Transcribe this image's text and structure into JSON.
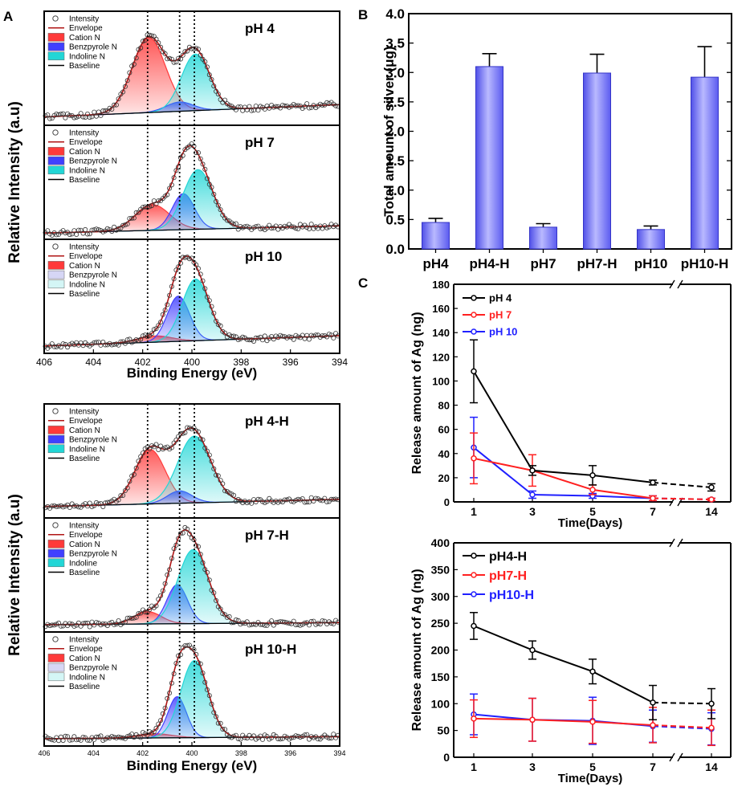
{
  "colors": {
    "cation": "#ff3a3a",
    "benz": "#4040ff",
    "indo": "#22d6d6",
    "env": "#b01515",
    "baseline": "#000000",
    "bar": "#7b7bff",
    "s_black": "#000000",
    "s_red": "#ff2020",
    "s_blue": "#2020ff"
  },
  "panel_labels": {
    "a": "A",
    "b": "B",
    "c": "C"
  },
  "chart_data": [
    {
      "id": "xps_top",
      "type": "line",
      "xlabel": "Binding Energy (eV)",
      "ylabel": "Relative Intensity (a.u)",
      "xlim": [
        406,
        394
      ],
      "xticks": [
        "406",
        "404",
        "402",
        "400",
        "398",
        "396",
        "394"
      ],
      "ref_lines": [
        401.8,
        400.5,
        399.9
      ],
      "subplots": [
        {
          "title": "pH 4",
          "legend": [
            "Intensity",
            "Envelope",
            "Cation N",
            "Benzpyrole N",
            "Indoline N",
            "Baseline"
          ],
          "legend_fills": [
            "none",
            "none",
            "cation",
            "benz",
            "indo",
            "none"
          ],
          "baseline": [
            0.05,
            0.17
          ],
          "peaks": [
            {
              "name": "Cation N",
              "center": 401.75,
              "height": 0.73,
              "width": 0.68
            },
            {
              "name": "Benzpyrole N",
              "center": 400.5,
              "height": 0.09,
              "width": 0.55
            },
            {
              "name": "Indoline N",
              "center": 399.85,
              "height": 0.55,
              "width": 0.58
            }
          ]
        },
        {
          "title": "pH 7",
          "legend": [
            "Intensity",
            "Envelope",
            "Cation N",
            "Benzpyrole N",
            "Indoline N",
            "Baseline"
          ],
          "legend_fills": [
            "none",
            "none",
            "cation",
            "benz",
            "indo",
            "none"
          ],
          "baseline": [
            0.03,
            0.1
          ],
          "peaks": [
            {
              "name": "Cation N",
              "center": 401.6,
              "height": 0.25,
              "width": 0.7
            },
            {
              "name": "Benzpyrole N",
              "center": 400.35,
              "height": 0.35,
              "width": 0.45
            },
            {
              "name": "Indoline N",
              "center": 399.75,
              "height": 0.58,
              "width": 0.6
            }
          ]
        },
        {
          "title": "pH 10",
          "legend": [
            "Intensity",
            "Envelope",
            "Cation N",
            "Benzpyrole N",
            "Indoline N",
            "Baseline"
          ],
          "legend_fills": [
            "none",
            "none",
            "cation",
            "benzlight",
            "indolight",
            "none"
          ],
          "baseline": [
            0.04,
            0.14
          ],
          "peaks": [
            {
              "name": "Cation N",
              "center": 401.5,
              "height": 0.06,
              "width": 0.7
            },
            {
              "name": "Benzpyrole N",
              "center": 400.55,
              "height": 0.44,
              "width": 0.45
            },
            {
              "name": "Indoline N",
              "center": 399.85,
              "height": 0.6,
              "width": 0.55
            }
          ]
        }
      ]
    },
    {
      "id": "xps_bottom",
      "type": "line",
      "xlabel": "Binding Energy (eV)",
      "ylabel": "Relative Intensity (a.u)",
      "xlim": [
        406,
        394
      ],
      "xticks": [
        "406",
        "404",
        "402",
        "400",
        "398",
        "396",
        "394"
      ],
      "ref_lines": [
        401.8,
        400.5,
        399.9
      ],
      "subplots": [
        {
          "title": "pH 4-H",
          "legend": [
            "Intensity",
            "Envelope",
            "Cation N",
            "Benzpyrole N",
            "Indoline N",
            "Baseline"
          ],
          "legend_fills": [
            "none",
            "none",
            "cation",
            "benz",
            "indo",
            "none"
          ],
          "baseline": [
            0.08,
            0.15
          ],
          "peaks": [
            {
              "name": "Cation N",
              "center": 401.7,
              "height": 0.53,
              "width": 0.62
            },
            {
              "name": "Benzpyrole N",
              "center": 400.5,
              "height": 0.12,
              "width": 0.5
            },
            {
              "name": "Indoline N",
              "center": 399.9,
              "height": 0.65,
              "width": 0.68
            }
          ]
        },
        {
          "title": "pH 7-H",
          "legend": [
            "Intensity",
            "Envelope",
            "Cation N",
            "Benzpyrole N",
            "Indoline",
            "Baseline"
          ],
          "legend_fills": [
            "none",
            "none",
            "cation",
            "benz",
            "indo",
            "none"
          ],
          "baseline": [
            0.04,
            0.06
          ],
          "peaks": [
            {
              "name": "Cation N",
              "center": 401.8,
              "height": 0.12,
              "width": 0.55
            },
            {
              "name": "Benzpyrole N",
              "center": 400.6,
              "height": 0.38,
              "width": 0.42
            },
            {
              "name": "Indoline N",
              "center": 399.95,
              "height": 0.72,
              "width": 0.62
            }
          ]
        },
        {
          "title": "pH 10-H",
          "legend": [
            "Intensity",
            "Envelope",
            "Cation N",
            "Benzpyrole N",
            "Indoline N",
            "Baseline"
          ],
          "legend_fills": [
            "none",
            "none",
            "cation",
            "benzlight",
            "indolight",
            "none"
          ],
          "baseline": [
            0.04,
            0.06
          ],
          "peaks": [
            {
              "name": "Cation N",
              "center": 401.5,
              "height": 0.04,
              "width": 0.7
            },
            {
              "name": "Benzpyrole N",
              "center": 400.6,
              "height": 0.4,
              "width": 0.38
            },
            {
              "name": "Indoline N",
              "center": 399.9,
              "height": 0.75,
              "width": 0.55
            }
          ]
        }
      ]
    },
    {
      "id": "bar",
      "type": "bar",
      "ylabel": "Total amount of silver (μg)",
      "categories": [
        "pH4",
        "pH4-H",
        "pH7",
        "pH7-H",
        "pH10",
        "pH10-H"
      ],
      "values": [
        0.45,
        3.1,
        0.37,
        2.99,
        0.33,
        2.92
      ],
      "errors": [
        0.07,
        0.22,
        0.06,
        0.32,
        0.06,
        0.52
      ],
      "ylim": [
        0,
        4.0
      ],
      "yticks": [
        "0.0",
        "0.5",
        "1.0",
        "1.5",
        "2.0",
        "2.5",
        "3.0",
        "3.5",
        "4.0"
      ]
    },
    {
      "id": "release1",
      "type": "line",
      "xlabel": "Time(Days)",
      "ylabel": "Release amount of Ag (ng)",
      "x": [
        "1",
        "3",
        "5",
        "7",
        "14"
      ],
      "ylim": [
        0,
        180
      ],
      "yticks": [
        "0",
        "20",
        "40",
        "60",
        "80",
        "100",
        "120",
        "140",
        "160",
        "180"
      ],
      "series": [
        {
          "name": "pH 4",
          "values": [
            108,
            26,
            22,
            16,
            12
          ],
          "errors": [
            26,
            4,
            8,
            2,
            3
          ]
        },
        {
          "name": "pH 7",
          "values": [
            36,
            26,
            10,
            3,
            2
          ],
          "errors": [
            21,
            13,
            4,
            2,
            1
          ]
        },
        {
          "name": "pH 10",
          "values": [
            45,
            6,
            5,
            3,
            2
          ],
          "errors": [
            25,
            3,
            2,
            2,
            1
          ]
        }
      ]
    },
    {
      "id": "release2",
      "type": "line",
      "xlabel": "Time(Days)",
      "ylabel": "Release amount of Ag (ng)",
      "x": [
        "1",
        "3",
        "5",
        "7",
        "14"
      ],
      "ylim": [
        0,
        400
      ],
      "yticks": [
        "0",
        "50",
        "100",
        "150",
        "200",
        "250",
        "300",
        "350",
        "400"
      ],
      "series": [
        {
          "name": "pH4-H",
          "values": [
            245,
            200,
            160,
            102,
            100
          ],
          "errors": [
            25,
            17,
            23,
            32,
            28
          ]
        },
        {
          "name": "pH7-H",
          "values": [
            72,
            70,
            66,
            60,
            55
          ],
          "errors": [
            35,
            40,
            40,
            33,
            33
          ]
        },
        {
          "name": "pH10-H",
          "values": [
            80,
            70,
            68,
            58,
            53
          ],
          "errors": [
            38,
            40,
            44,
            30,
            30
          ]
        }
      ]
    }
  ]
}
